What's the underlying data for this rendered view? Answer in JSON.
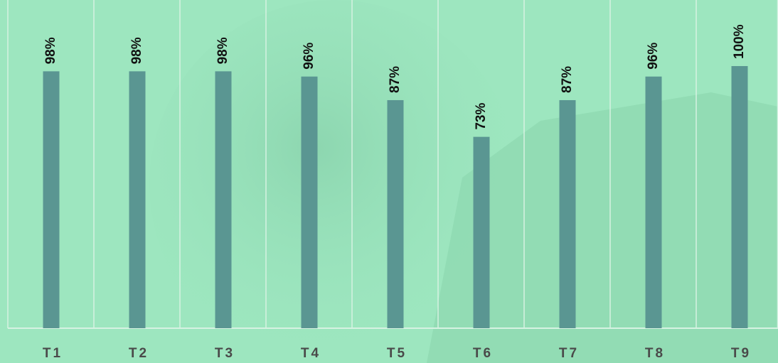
{
  "chart_data": {
    "type": "bar",
    "categories": [
      "T1",
      "T2",
      "T3",
      "T4",
      "T5",
      "T6",
      "T7",
      "T8",
      "T9"
    ],
    "values": [
      98,
      98,
      98,
      96,
      87,
      73,
      87,
      96,
      100
    ],
    "value_labels": [
      "98%",
      "98%",
      "98%",
      "96%",
      "87%",
      "73%",
      "87%",
      "96%",
      "100%"
    ],
    "color": "#5a9692",
    "ylim": [
      0,
      100
    ]
  }
}
